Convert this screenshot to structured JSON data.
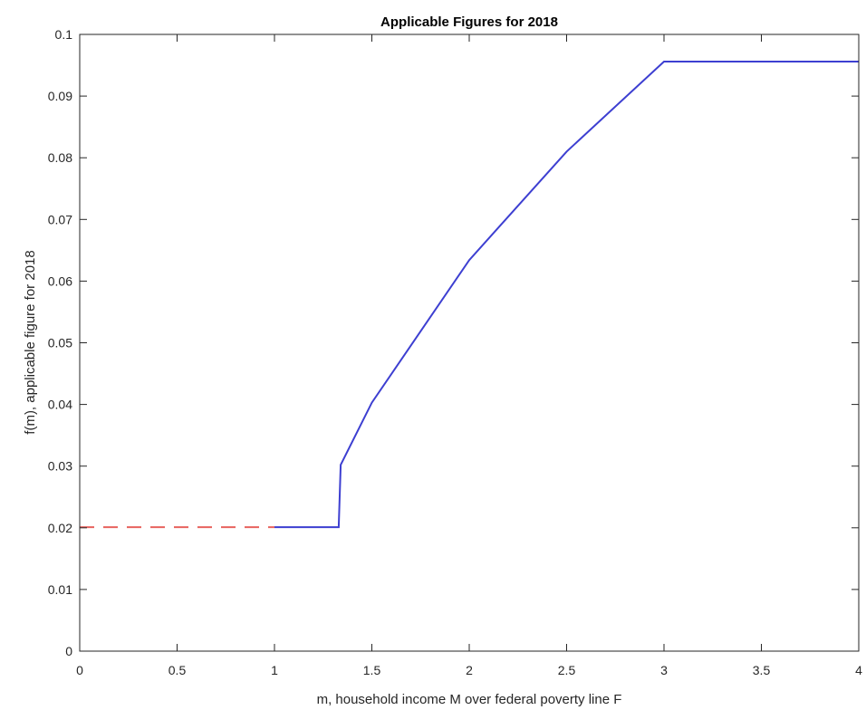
{
  "chart_data": {
    "type": "line",
    "title": "Applicable Figures for 2018",
    "xlabel": "m, household income M over federal poverty line F",
    "ylabel": "f(m), applicable figure for 2018",
    "xlim": [
      0,
      4
    ],
    "ylim": [
      0,
      0.1
    ],
    "x_ticks": [
      0,
      0.5,
      1,
      1.5,
      2,
      2.5,
      3,
      3.5,
      4
    ],
    "x_tick_labels": [
      "0",
      "0.5",
      "1",
      "1.5",
      "2",
      "2.5",
      "3",
      "3.5",
      "4"
    ],
    "y_ticks": [
      0,
      0.01,
      0.02,
      0.03,
      0.04,
      0.05,
      0.06,
      0.07,
      0.08,
      0.09,
      0.1
    ],
    "y_tick_labels": [
      "0",
      "0.01",
      "0.02",
      "0.03",
      "0.04",
      "0.05",
      "0.06",
      "0.07",
      "0.08",
      "0.09",
      "0.1"
    ],
    "grid": false,
    "box": true,
    "series": [
      {
        "style": "dashed",
        "color": "#e8635f",
        "x": [
          0,
          1
        ],
        "y": [
          0.0201,
          0.0201
        ]
      },
      {
        "style": "solid",
        "color": "#3d3fd1",
        "x": [
          1,
          1.33,
          1.34,
          1.5,
          2,
          2.5,
          3,
          4
        ],
        "y": [
          0.0201,
          0.0201,
          0.0302,
          0.0403,
          0.0634,
          0.081,
          0.0956,
          0.0956
        ]
      }
    ]
  }
}
